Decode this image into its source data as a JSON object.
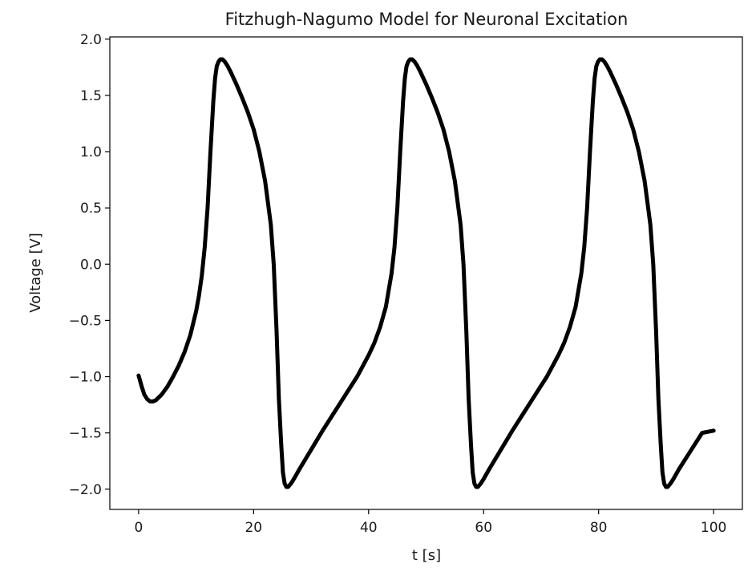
{
  "chart_data": {
    "type": "line",
    "title": "Fitzhugh-Nagumo Model for Neuronal Excitation",
    "xlabel": "t [s]",
    "ylabel": "Voltage [V]",
    "xlim": [
      -5,
      105
    ],
    "ylim": [
      -2.18,
      2.02
    ],
    "xticks": [
      0,
      20,
      40,
      60,
      80,
      100
    ],
    "yticks": [
      2.0,
      1.5,
      1.0,
      0.5,
      0.0,
      -0.5,
      -1.0,
      -1.5,
      -2.0
    ],
    "xtick_labels": [
      "0",
      "20",
      "40",
      "60",
      "80",
      "100"
    ],
    "ytick_labels": [
      "2.0",
      "1.5",
      "1.0",
      "0.5",
      "0.0",
      "−0.5",
      "−1.0",
      "−1.5",
      "−2.0"
    ],
    "grid": false,
    "line_color": "#000000",
    "series": [
      {
        "x": [
          0,
          0.5,
          1,
          1.5,
          2,
          2.5,
          3,
          4,
          5,
          6,
          7,
          8,
          9,
          10,
          10.5,
          11,
          11.5,
          12,
          12.5,
          13,
          13.3,
          13.6,
          13.9,
          14.2,
          14.6,
          15,
          15.5,
          16,
          17,
          18,
          19,
          20,
          21,
          22,
          23,
          23.5,
          24,
          24.4,
          24.8,
          25.1,
          25.4,
          25.7,
          26,
          26.5,
          27,
          28,
          30,
          32,
          34,
          36,
          38,
          40,
          41,
          42,
          43,
          44,
          44.5,
          45,
          45.5,
          46,
          46.3,
          46.6,
          46.9,
          47.2,
          47.6,
          48,
          48.5,
          49,
          50,
          51,
          52,
          53,
          54,
          55,
          56,
          56.5,
          57,
          57.4,
          57.8,
          58.1,
          58.4,
          58.7,
          59,
          59.5,
          60,
          61,
          63,
          65,
          67,
          69,
          71,
          73,
          74,
          75,
          76,
          77,
          77.5,
          78,
          78.5,
          79,
          79.3,
          79.6,
          79.9,
          80.2,
          80.6,
          81,
          81.5,
          82,
          83,
          84,
          85,
          86,
          87,
          88,
          89,
          89.5,
          90,
          90.4,
          90.8,
          91.1,
          91.4,
          91.7,
          92,
          92.5,
          93,
          94,
          96,
          98,
          100
        ],
        "y": [
          -0.99,
          -1.08,
          -1.16,
          -1.2,
          -1.22,
          -1.22,
          -1.21,
          -1.16,
          -1.09,
          -1.0,
          -0.9,
          -0.78,
          -0.63,
          -0.42,
          -0.28,
          -0.1,
          0.15,
          0.5,
          1.0,
          1.45,
          1.65,
          1.76,
          1.8,
          1.82,
          1.82,
          1.8,
          1.76,
          1.71,
          1.6,
          1.48,
          1.35,
          1.2,
          1.0,
          0.74,
          0.35,
          0.0,
          -0.6,
          -1.2,
          -1.6,
          -1.85,
          -1.95,
          -1.98,
          -1.98,
          -1.95,
          -1.91,
          -1.82,
          -1.65,
          -1.48,
          -1.32,
          -1.16,
          -1.0,
          -0.81,
          -0.7,
          -0.56,
          -0.38,
          -0.08,
          0.15,
          0.5,
          1.0,
          1.45,
          1.65,
          1.76,
          1.8,
          1.82,
          1.82,
          1.8,
          1.76,
          1.71,
          1.6,
          1.48,
          1.35,
          1.2,
          1.0,
          0.74,
          0.35,
          0.0,
          -0.6,
          -1.2,
          -1.6,
          -1.85,
          -1.95,
          -1.98,
          -1.98,
          -1.95,
          -1.91,
          -1.82,
          -1.65,
          -1.48,
          -1.32,
          -1.16,
          -1.0,
          -0.81,
          -0.7,
          -0.56,
          -0.38,
          -0.08,
          0.15,
          0.5,
          1.0,
          1.45,
          1.65,
          1.76,
          1.8,
          1.82,
          1.82,
          1.8,
          1.76,
          1.71,
          1.6,
          1.48,
          1.35,
          1.2,
          1.0,
          0.74,
          0.35,
          0.0,
          -0.6,
          -1.2,
          -1.6,
          -1.85,
          -1.95,
          -1.98,
          -1.98,
          -1.95,
          -1.91,
          -1.82,
          -1.66,
          -1.5,
          -1.48
        ]
      }
    ]
  }
}
